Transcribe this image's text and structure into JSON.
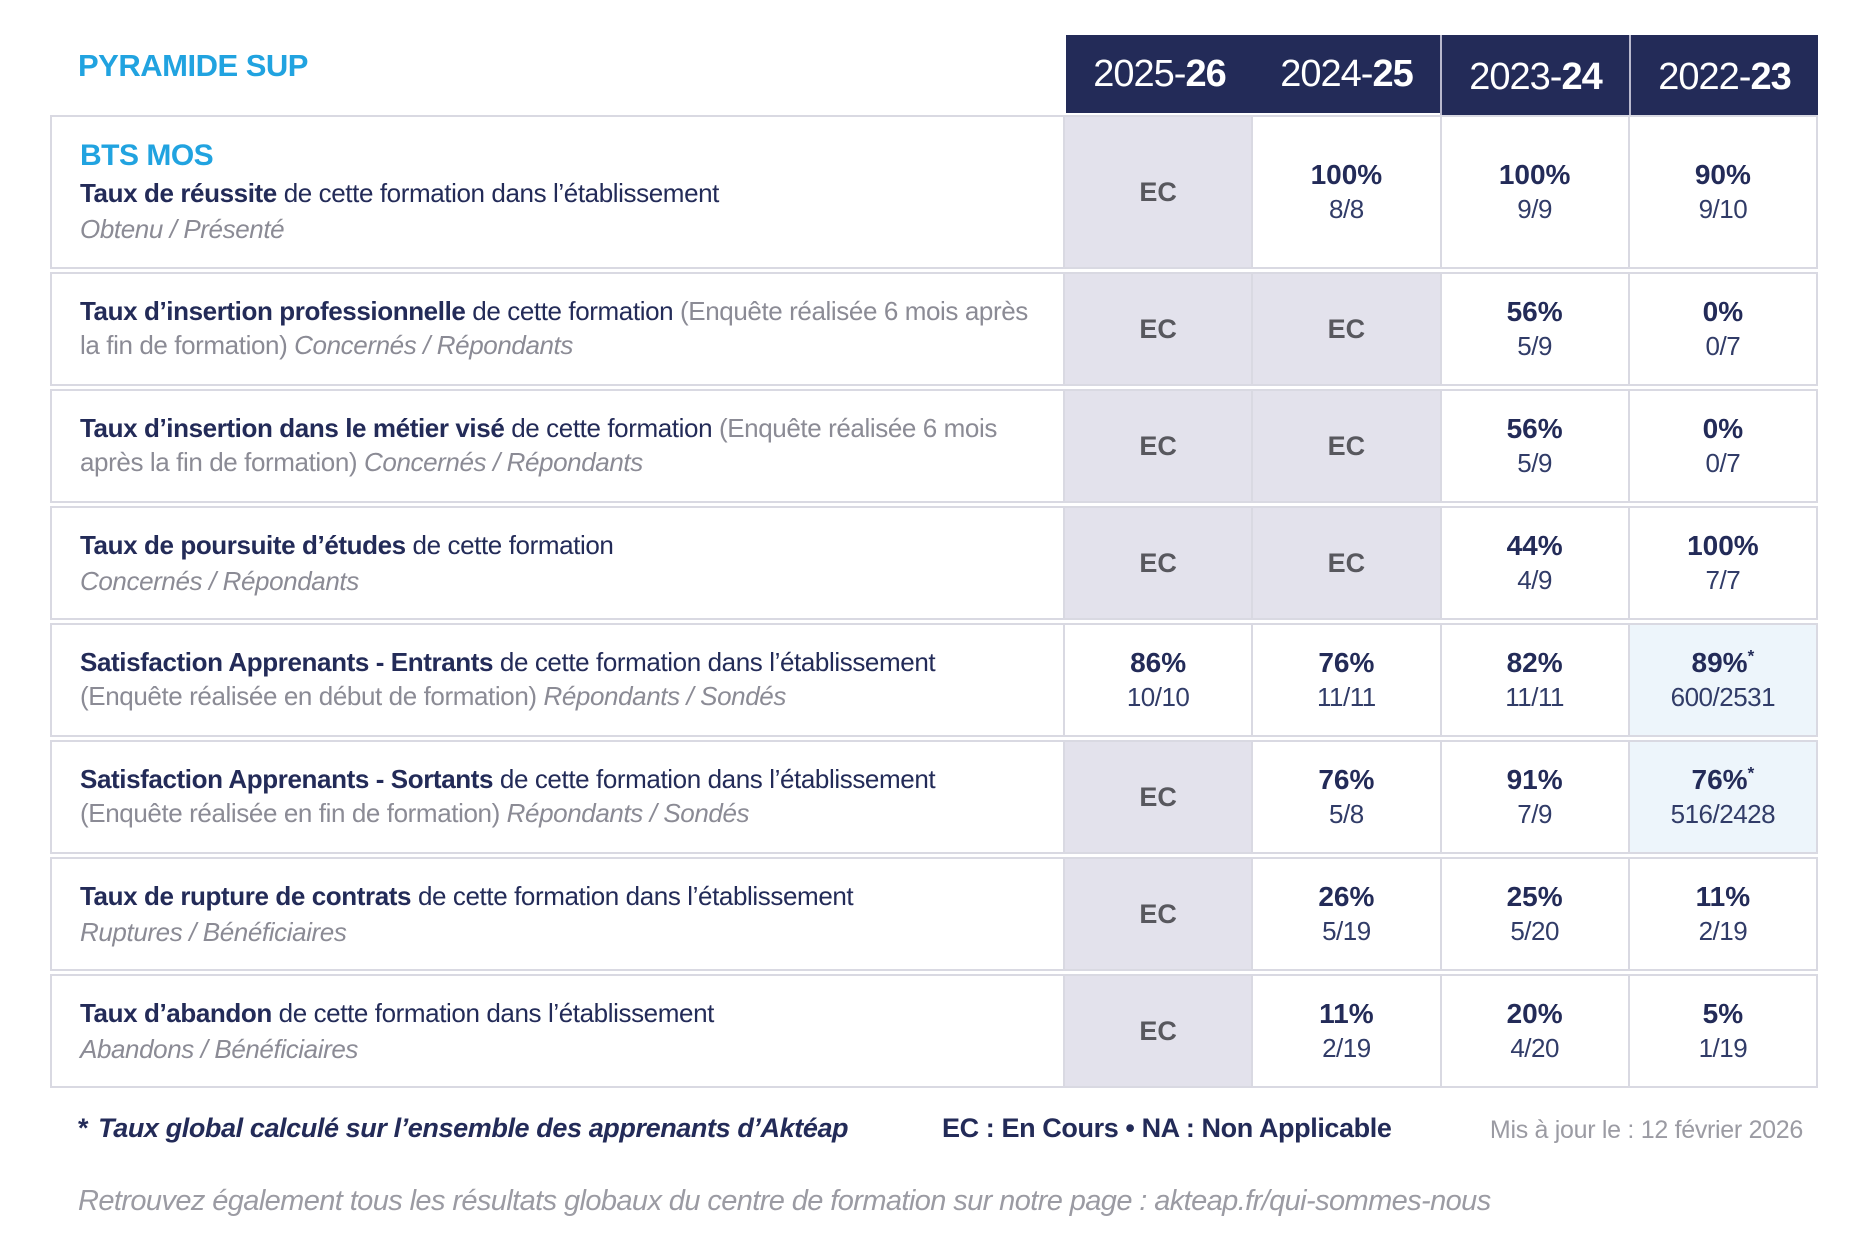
{
  "title": "PYRAMIDE SUP",
  "colors": {
    "accent_cyan": "#21a3e0",
    "navy": "#232b58",
    "gray_text": "#8b8b95",
    "ec_cell_bg": "#e3e2ec",
    "star_cell_bg": "#edf5fb",
    "border": "#d9d9e2"
  },
  "header": {
    "years": [
      {
        "prefix": "2025-",
        "suffix": "26"
      },
      {
        "prefix": "2024-",
        "suffix": "25"
      },
      {
        "prefix": "2023-",
        "suffix": "24"
      },
      {
        "prefix": "2022-",
        "suffix": "23"
      }
    ]
  },
  "rows": [
    {
      "heading": "BTS MOS",
      "segments": [
        {
          "c": "b",
          "t": "Taux de réussite"
        },
        {
          "c": "n",
          "t": " de cette formation dans l’établissement"
        }
      ],
      "subline": "Obtenu / Présenté",
      "cells": [
        {
          "type": "ec",
          "text": "EC"
        },
        {
          "type": "v",
          "pct": "100%",
          "frac": "8/8"
        },
        {
          "type": "v",
          "pct": "100%",
          "frac": "9/9"
        },
        {
          "type": "v",
          "pct": "90%",
          "frac": "9/10"
        }
      ]
    },
    {
      "segments": [
        {
          "c": "b",
          "t": "Taux d’insertion professionnelle"
        },
        {
          "c": "n",
          "t": " de cette formation "
        },
        {
          "c": "g",
          "t": "(Enquête réalisée 6 mois après la fin de formation) "
        },
        {
          "c": "gi",
          "t": "Concernés / Répondants"
        }
      ],
      "cells": [
        {
          "type": "ec",
          "text": "EC"
        },
        {
          "type": "ec",
          "text": "EC"
        },
        {
          "type": "v",
          "pct": "56%",
          "frac": "5/9"
        },
        {
          "type": "v",
          "pct": "0%",
          "frac": "0/7"
        }
      ]
    },
    {
      "segments": [
        {
          "c": "b",
          "t": "Taux d’insertion dans le métier visé"
        },
        {
          "c": "n",
          "t": " de cette formation "
        },
        {
          "c": "g",
          "t": "(Enquête réalisée 6 mois après la fin de formation) "
        },
        {
          "c": "gi",
          "t": "Concernés / Répondants"
        }
      ],
      "cells": [
        {
          "type": "ec",
          "text": "EC"
        },
        {
          "type": "ec",
          "text": "EC"
        },
        {
          "type": "v",
          "pct": "56%",
          "frac": "5/9"
        },
        {
          "type": "v",
          "pct": "0%",
          "frac": "0/7"
        }
      ]
    },
    {
      "segments": [
        {
          "c": "b",
          "t": "Taux de poursuite d’études"
        },
        {
          "c": "n",
          "t": " de cette formation"
        }
      ],
      "subline": "Concernés / Répondants",
      "cells": [
        {
          "type": "ec",
          "text": "EC"
        },
        {
          "type": "ec",
          "text": "EC"
        },
        {
          "type": "v",
          "pct": "44%",
          "frac": "4/9"
        },
        {
          "type": "v",
          "pct": "100%",
          "frac": "7/7"
        }
      ]
    },
    {
      "segments": [
        {
          "c": "b",
          "t": "Satisfaction Apprenants - Entrants"
        },
        {
          "c": "n",
          "t": " de cette formation dans l’établissement "
        },
        {
          "c": "g",
          "t": "(Enquête réalisée en début de formation) "
        },
        {
          "c": "gi",
          "t": "Répondants / Sondés"
        }
      ],
      "cells": [
        {
          "type": "v",
          "pct": "86%",
          "frac": "10/10"
        },
        {
          "type": "v",
          "pct": "76%",
          "frac": "11/11"
        },
        {
          "type": "v",
          "pct": "82%",
          "frac": "11/11"
        },
        {
          "type": "vs",
          "pct": "89%",
          "mark": "*",
          "frac": "600/2531"
        }
      ]
    },
    {
      "segments": [
        {
          "c": "b",
          "t": "Satisfaction Apprenants - Sortants"
        },
        {
          "c": "n",
          "t": " de cette formation dans l’établissement "
        },
        {
          "c": "g",
          "t": "(Enquête réalisée en fin de formation) "
        },
        {
          "c": "gi",
          "t": "Répondants / Sondés"
        }
      ],
      "cells": [
        {
          "type": "ec",
          "text": "EC"
        },
        {
          "type": "v",
          "pct": "76%",
          "frac": "5/8"
        },
        {
          "type": "v",
          "pct": "91%",
          "frac": "7/9"
        },
        {
          "type": "vs",
          "pct": "76%",
          "mark": "*",
          "frac": "516/2428"
        }
      ]
    },
    {
      "segments": [
        {
          "c": "b",
          "t": "Taux de rupture de contrats"
        },
        {
          "c": "n",
          "t": " de cette formation dans l’établissement"
        }
      ],
      "subline": "Ruptures / Bénéficiaires",
      "cells": [
        {
          "type": "ec",
          "text": "EC"
        },
        {
          "type": "v",
          "pct": "26%",
          "frac": "5/19"
        },
        {
          "type": "v",
          "pct": "25%",
          "frac": "5/20"
        },
        {
          "type": "v",
          "pct": "11%",
          "frac": "2/19"
        }
      ]
    },
    {
      "segments": [
        {
          "c": "b",
          "t": "Taux d’abandon"
        },
        {
          "c": "n",
          "t": " de cette formation dans l’établissement"
        }
      ],
      "subline": "Abandons / Bénéficiaires",
      "cells": [
        {
          "type": "ec",
          "text": "EC"
        },
        {
          "type": "v",
          "pct": "11%",
          "frac": "2/19"
        },
        {
          "type": "v",
          "pct": "20%",
          "frac": "4/20"
        },
        {
          "type": "v",
          "pct": "5%",
          "frac": "1/19"
        }
      ]
    }
  ],
  "footer": {
    "star_mark": "*",
    "note": "Taux global calculé sur l’ensemble des apprenants d’Aktéap",
    "legend": "EC : En Cours  •  NA : Non Applicable",
    "updated": "Mis à jour le : 12 février 2026",
    "bottom": "Retrouvez également tous les résultats globaux du centre de formation sur notre page : akteap.fr/qui-sommes-nous"
  }
}
